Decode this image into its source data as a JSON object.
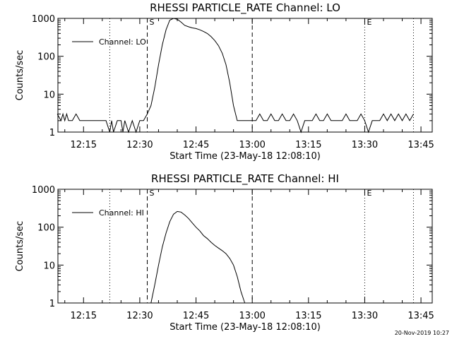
{
  "footer": "20-Nov-2019 10:27",
  "chart_data": [
    {
      "type": "line",
      "title": "RHESSI PARTICLE_RATE Channel: LO",
      "xlabel": "Start Time (23-May-18 12:08:10)",
      "ylabel": "Counts/sec",
      "x_ticks": [
        "12:15",
        "12:30",
        "12:45",
        "13:00",
        "13:15",
        "13:30",
        "13:45"
      ],
      "y_ticks": [
        "1",
        "10",
        "100",
        "1000"
      ],
      "xlim": [
        "12:08:10",
        "13:48"
      ],
      "ylim": [
        1,
        1000
      ],
      "y_scale": "log",
      "legend": {
        "label": "Channel: LO",
        "placement": "top-left"
      },
      "markers": [
        {
          "time": "12:22",
          "style": "dotted",
          "label": ""
        },
        {
          "time": "12:32",
          "style": "dashed",
          "label": "S"
        },
        {
          "time": "13:00",
          "style": "dashed",
          "label": ""
        },
        {
          "time": "13:30",
          "style": "dotted",
          "label": "E"
        },
        {
          "time": "13:43",
          "style": "dotted",
          "label": ""
        }
      ],
      "series": [
        {
          "name": "Channel: LO",
          "x": [
            "12:08",
            "12:09",
            "12:09.5",
            "12:10",
            "12:10.5",
            "12:11",
            "12:12",
            "12:13",
            "12:14",
            "12:16",
            "12:18",
            "12:20",
            "12:21",
            "12:22",
            "12:22.5",
            "12:23",
            "12:24",
            "12:25",
            "12:25.5",
            "12:26",
            "12:27",
            "12:28",
            "12:29",
            "12:30",
            "12:30.5",
            "12:31",
            "12:32",
            "12:33",
            "12:34",
            "12:35",
            "12:36",
            "12:37",
            "12:38",
            "12:39",
            "12:40",
            "12:41",
            "12:42",
            "12:43",
            "12:44",
            "12:45",
            "12:46",
            "12:47",
            "12:48",
            "12:49",
            "12:50",
            "12:51",
            "12:52",
            "12:53",
            "12:54",
            "12:55",
            "12:56",
            "12:57",
            "12:58",
            "12:59",
            "13:00",
            "13:01",
            "13:02",
            "13:03",
            "13:04",
            "13:05",
            "13:06",
            "13:07",
            "13:08",
            "13:09",
            "13:10",
            "13:11",
            "13:12",
            "13:13",
            "13:14",
            "13:15",
            "13:16",
            "13:17",
            "13:18",
            "13:19",
            "13:20",
            "13:21",
            "13:22",
            "13:23",
            "13:24",
            "13:25",
            "13:26",
            "13:27",
            "13:28",
            "13:29",
            "13:30",
            "13:31",
            "13:32",
            "13:33",
            "13:34",
            "13:35",
            "13:36",
            "13:37",
            "13:38",
            "13:39",
            "13:40",
            "13:41",
            "13:42",
            "13:43"
          ],
          "values": [
            3,
            2,
            3,
            2,
            3,
            2,
            2,
            3,
            2,
            2,
            2,
            2,
            2,
            1,
            2,
            1,
            2,
            2,
            1,
            2,
            1,
            2,
            1,
            2,
            2,
            2,
            3,
            5,
            15,
            60,
            200,
            500,
            900,
            1000,
            950,
            800,
            650,
            600,
            560,
            540,
            500,
            450,
            400,
            330,
            260,
            190,
            120,
            60,
            20,
            5,
            2,
            2,
            2,
            2,
            2,
            2,
            3,
            2,
            2,
            3,
            2,
            2,
            3,
            2,
            2,
            3,
            2,
            1,
            2,
            2,
            2,
            3,
            2,
            2,
            3,
            2,
            2,
            2,
            2,
            3,
            2,
            2,
            2,
            3,
            2,
            1,
            2,
            2,
            2,
            3,
            2,
            3,
            2,
            3,
            2,
            3,
            2,
            3
          ]
        }
      ]
    },
    {
      "type": "line",
      "title": "RHESSI PARTICLE_RATE Channel: HI",
      "xlabel": "Start Time (23-May-18 12:08:10)",
      "ylabel": "Counts/sec",
      "x_ticks": [
        "12:15",
        "12:30",
        "12:45",
        "13:00",
        "13:15",
        "13:30",
        "13:45"
      ],
      "y_ticks": [
        "1",
        "10",
        "100",
        "1000"
      ],
      "xlim": [
        "12:08:10",
        "13:48"
      ],
      "ylim": [
        1,
        1000
      ],
      "y_scale": "log",
      "legend": {
        "label": "Channel: HI",
        "placement": "top-left"
      },
      "markers": [
        {
          "time": "12:22",
          "style": "dotted",
          "label": ""
        },
        {
          "time": "12:32",
          "style": "dashed",
          "label": "S"
        },
        {
          "time": "13:00",
          "style": "dashed",
          "label": ""
        },
        {
          "time": "13:30",
          "style": "dotted",
          "label": "E"
        },
        {
          "time": "13:43",
          "style": "dotted",
          "label": ""
        }
      ],
      "series": [
        {
          "name": "Channel: HI",
          "x": [
            "12:33",
            "12:34",
            "12:35",
            "12:36",
            "12:37",
            "12:38",
            "12:39",
            "12:40",
            "12:41",
            "12:42",
            "12:43",
            "12:44",
            "12:45",
            "12:46",
            "12:47",
            "12:48",
            "12:49",
            "12:50",
            "12:51",
            "12:52",
            "12:53",
            "12:54",
            "12:55",
            "12:56",
            "12:57",
            "12:58"
          ],
          "values": [
            1,
            3,
            10,
            30,
            70,
            140,
            220,
            260,
            250,
            210,
            170,
            130,
            100,
            80,
            60,
            50,
            40,
            33,
            28,
            24,
            20,
            15,
            10,
            5,
            2,
            1
          ]
        }
      ]
    }
  ]
}
